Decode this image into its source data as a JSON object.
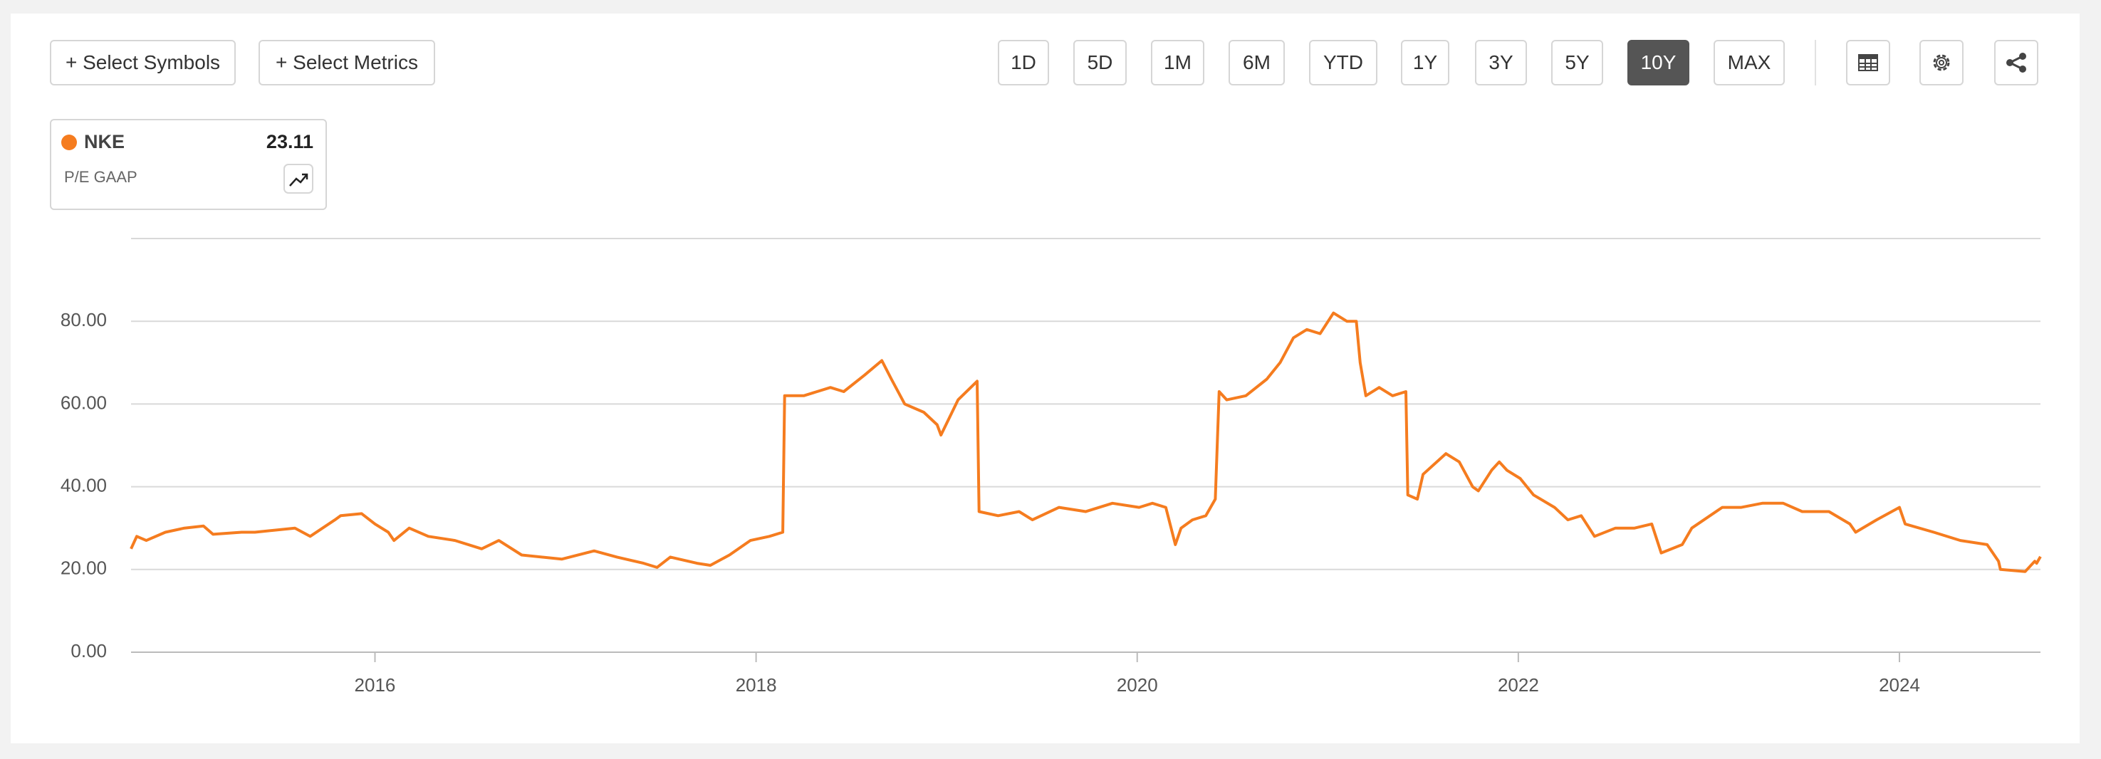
{
  "controls": {
    "symbols_button": "+ Select Symbols",
    "metrics_button": "+ Select Metrics",
    "ranges": [
      "1D",
      "5D",
      "1M",
      "6M",
      "YTD",
      "1Y",
      "3Y",
      "5Y",
      "10Y",
      "MAX"
    ],
    "active_range": "10Y"
  },
  "chart_data": {
    "type": "line",
    "metric": "P/E GAAP",
    "x": [
      2014.72,
      2014.75,
      2014.8,
      2014.9,
      2015.0,
      2015.1,
      2015.15,
      2015.3,
      2015.37,
      2015.58,
      2015.66,
      2015.79,
      2015.82,
      2015.93,
      2016.0,
      2016.07,
      2016.1,
      2016.18,
      2016.28,
      2016.42,
      2016.56,
      2016.65,
      2016.77,
      2016.98,
      2017.15,
      2017.27,
      2017.41,
      2017.48,
      2017.55,
      2017.69,
      2017.76,
      2017.86,
      2017.97,
      2018.07,
      2018.14,
      2018.15,
      2018.25,
      2018.39,
      2018.46,
      2018.57,
      2018.66,
      2018.71,
      2018.78,
      2018.88,
      2018.95,
      2018.97,
      2019.06,
      2019.16,
      2019.17,
      2019.27,
      2019.38,
      2019.45,
      2019.59,
      2019.73,
      2019.87,
      2020.01,
      2020.08,
      2020.15,
      2020.2,
      2020.23,
      2020.29,
      2020.36,
      2020.41,
      2020.43,
      2020.47,
      2020.57,
      2020.68,
      2020.75,
      2020.82,
      2020.89,
      2020.96,
      2021.03,
      2021.1,
      2021.15,
      2021.17,
      2021.2,
      2021.27,
      2021.34,
      2021.41,
      2021.42,
      2021.47,
      2021.5,
      2021.62,
      2021.69,
      2021.76,
      2021.79,
      2021.86,
      2021.9,
      2021.94,
      2022.01,
      2022.08,
      2022.19,
      2022.26,
      2022.33,
      2022.4,
      2022.51,
      2022.61,
      2022.7,
      2022.75,
      2022.86,
      2022.91,
      2023.07,
      2023.17,
      2023.28,
      2023.39,
      2023.49,
      2023.63,
      2023.74,
      2023.77,
      2023.88,
      2024.0,
      2024.03,
      2024.18,
      2024.32,
      2024.46,
      2024.52,
      2024.53,
      2024.66,
      2024.71,
      2024.72,
      2024.74
    ],
    "series": [
      {
        "name": "NKE",
        "color": "#f57c1f",
        "current_value": 23.11,
        "values": [
          25,
          28,
          27,
          29,
          30,
          30.5,
          28.5,
          29,
          29,
          30,
          28,
          32,
          33,
          33.5,
          31,
          29,
          27,
          30,
          28,
          27,
          25,
          27,
          23.5,
          22.5,
          24.5,
          23,
          21.5,
          20.5,
          23,
          21.5,
          21,
          23.5,
          27,
          28,
          29,
          62,
          62,
          64,
          63,
          67,
          70.5,
          66,
          60,
          58,
          55,
          52.5,
          61,
          65.5,
          34,
          33,
          34,
          32,
          35,
          34,
          36,
          35,
          36,
          35,
          26,
          30,
          32,
          33,
          37,
          63,
          61,
          62,
          66,
          70,
          76,
          78,
          77,
          82,
          80,
          80,
          70,
          62,
          64,
          62,
          63,
          38,
          37,
          43,
          48,
          46,
          40,
          39,
          44,
          46,
          44,
          42,
          38,
          35,
          32,
          33,
          28,
          30,
          30,
          31,
          24,
          26,
          30,
          35,
          35,
          36,
          36,
          34,
          34,
          31,
          29,
          32,
          35,
          31,
          29,
          27,
          26,
          22,
          20,
          19.5,
          22,
          21.5,
          23.11
        ]
      }
    ],
    "xlim": [
      2014.72,
      2024.74
    ],
    "xticks": [
      2016,
      2018,
      2020,
      2022,
      2024
    ],
    "ylim": [
      0,
      100
    ],
    "yticks": [
      {
        "value": 0,
        "label": "0.00"
      },
      {
        "value": 20,
        "label": "20.00"
      },
      {
        "value": 40,
        "label": "40.00"
      },
      {
        "value": 60,
        "label": "60.00"
      },
      {
        "value": 80,
        "label": "80.00"
      }
    ],
    "grid": true
  }
}
